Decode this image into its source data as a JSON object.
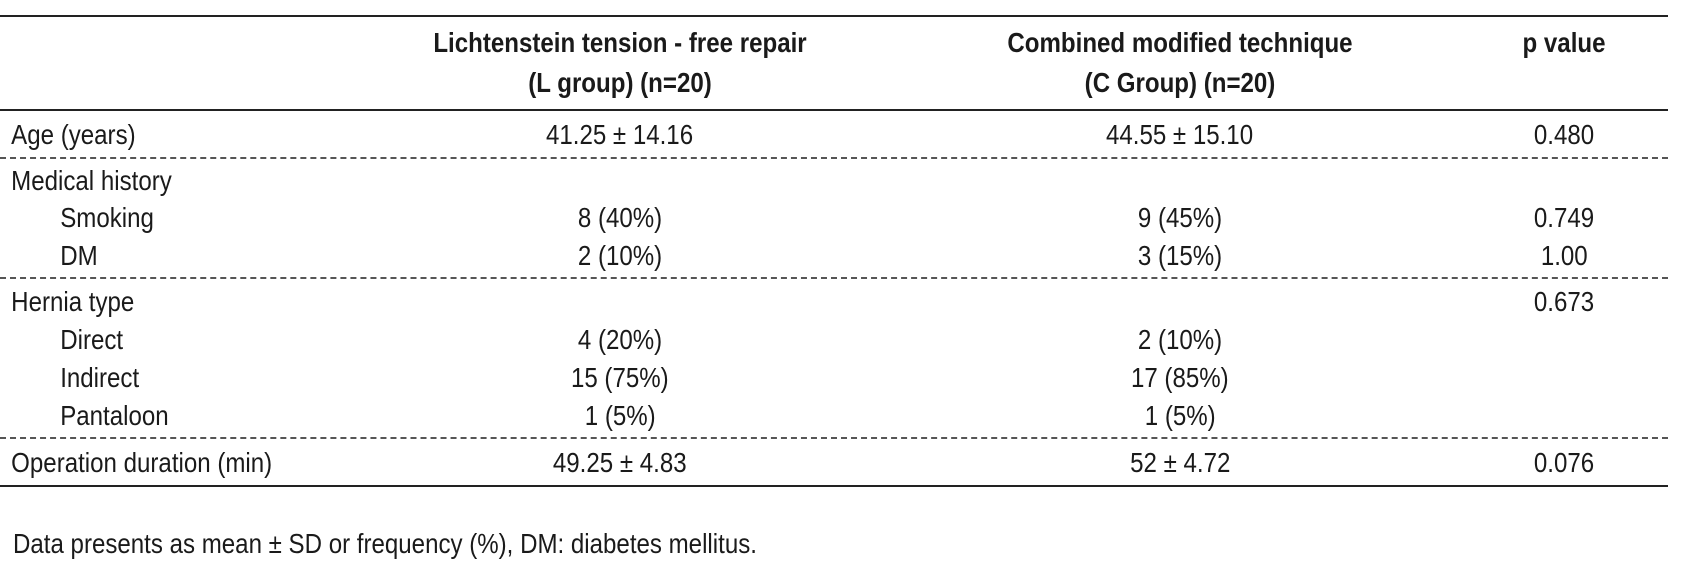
{
  "header": {
    "col_label": "",
    "col_l_line1": "Lichtenstein tension - free repair",
    "col_l_line2": "(L group) (n=20)",
    "col_c_line1": "Combined modified technique",
    "col_c_line2": "(C Group) (n=20)",
    "col_p": "p value"
  },
  "rows": {
    "age": {
      "label": "Age (years)",
      "l": "41.25 ± 14.16",
      "c": "44.55 ± 15.10",
      "p": "0.480"
    },
    "medical_history": {
      "label": "Medical history"
    },
    "smoking": {
      "label": "Smoking",
      "l": "8 (40%)",
      "c": "9 (45%)",
      "p": "0.749"
    },
    "dm": {
      "label": "DM",
      "l": "2 (10%)",
      "c": "3 (15%)",
      "p": "1.00"
    },
    "hernia_type": {
      "label": "Hernia type",
      "p": "0.673"
    },
    "direct": {
      "label": "Direct",
      "l": "4 (20%)",
      "c": "2 (10%)"
    },
    "indirect": {
      "label": "Indirect",
      "l": "15 (75%)",
      "c": "17 (85%)"
    },
    "pantaloon": {
      "label": "Pantaloon",
      "l": "1 (5%)",
      "c": "1 (5%)"
    },
    "operation": {
      "label": "Operation duration (min)",
      "l": "49.25 ± 4.83",
      "c": "52 ± 4.72",
      "p": "0.076"
    }
  },
  "footnote": "Data presents as mean ± SD or frequency (%), DM: diabetes mellitus."
}
